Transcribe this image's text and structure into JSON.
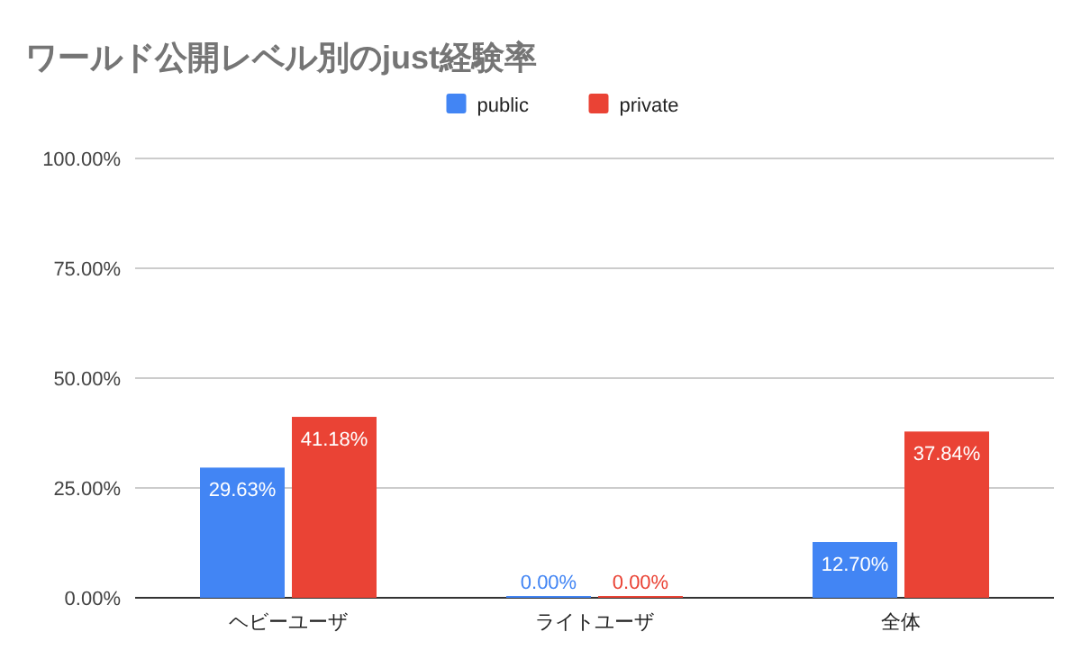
{
  "chart_data": {
    "type": "bar",
    "title": "ワールド公開レベル別のjust経験率",
    "categories": [
      "ヘビーユーザ",
      "ライトユーザ",
      "全体"
    ],
    "series": [
      {
        "name": "public",
        "color": "#4285f4",
        "values": [
          29.63,
          0,
          12.7
        ],
        "value_labels": [
          "29.63%",
          "0.00%",
          "12.70%"
        ]
      },
      {
        "name": "private",
        "color": "#ea4335",
        "values": [
          41.18,
          0,
          37.84
        ],
        "value_labels": [
          "41.18%",
          "0.00%",
          "37.84%"
        ]
      }
    ],
    "ylim": [
      0,
      100
    ],
    "yticks": [
      {
        "value": 0,
        "label": "0.00%"
      },
      {
        "value": 25,
        "label": "25.00%"
      },
      {
        "value": 50,
        "label": "50.00%"
      },
      {
        "value": 75,
        "label": "75.00%"
      },
      {
        "value": 100,
        "label": "100.00%"
      }
    ],
    "grid": "y",
    "legend": "top"
  }
}
